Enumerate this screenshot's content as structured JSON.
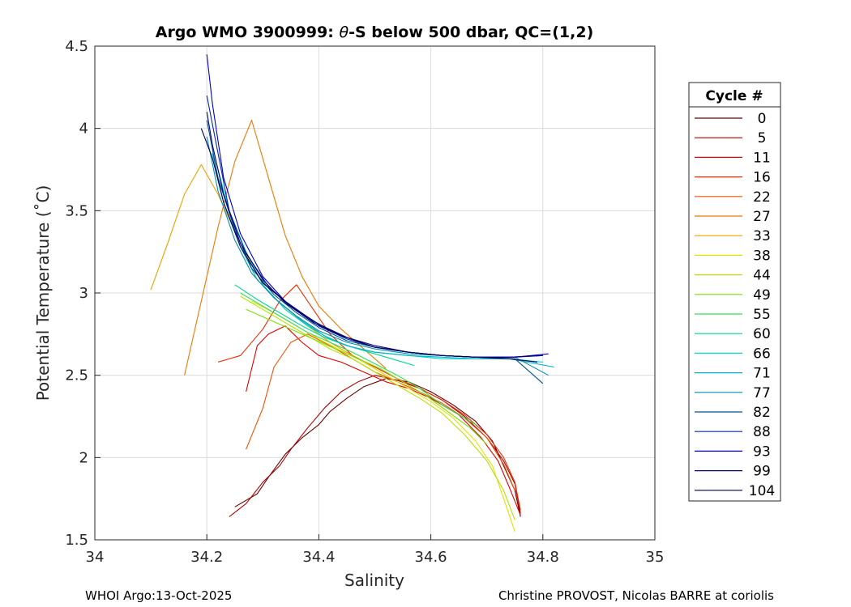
{
  "chart_data": {
    "type": "line",
    "title_prefix": "Argo WMO 3900999: ",
    "title_theta": "θ",
    "title_suffix": "-S below 500 dbar,  QC=(1,2)",
    "xlabel": "Salinity",
    "ylabel": "Potential Temperature (˚C)",
    "xlim": [
      34,
      35
    ],
    "ylim": [
      1.5,
      4.5
    ],
    "xticks": [
      34,
      34.2,
      34.4,
      34.6,
      34.8,
      35
    ],
    "xtick_labels": [
      "34",
      "34.2",
      "34.4",
      "34.6",
      "34.8",
      "35"
    ],
    "yticks": [
      1.5,
      2,
      2.5,
      3,
      3.5,
      4,
      4.5
    ],
    "ytick_labels": [
      "1.5",
      "2",
      "2.5",
      "3",
      "3.5",
      "4",
      "4.5"
    ],
    "grid": true,
    "legend": {
      "title": "Cycle #",
      "position": "right",
      "entries": [
        {
          "label": "0",
          "color": "#6a0000"
        },
        {
          "label": "5",
          "color": "#b00000"
        },
        {
          "label": "11",
          "color": "#e00000"
        },
        {
          "label": "16",
          "color": "#ee2a00"
        },
        {
          "label": "22",
          "color": "#f05000"
        },
        {
          "label": "27",
          "color": "#f07800"
        },
        {
          "label": "33",
          "color": "#f0a000"
        },
        {
          "label": "38",
          "color": "#e8e000"
        },
        {
          "label": "44",
          "color": "#b4e400"
        },
        {
          "label": "49",
          "color": "#7ae000"
        },
        {
          "label": "55",
          "color": "#30e050"
        },
        {
          "label": "60",
          "color": "#00d890"
        },
        {
          "label": "66",
          "color": "#00d8d0"
        },
        {
          "label": "71",
          "color": "#00b0c8"
        },
        {
          "label": "77",
          "color": "#0090b0"
        },
        {
          "label": "82",
          "color": "#005090"
        },
        {
          "label": "88",
          "color": "#0028a8"
        },
        {
          "label": "93",
          "color": "#0000c8"
        },
        {
          "label": "99",
          "color": "#00007a"
        },
        {
          "label": "104",
          "color": "#000050"
        }
      ]
    },
    "series": [
      {
        "name": "0",
        "color": "#6a0000",
        "x": [
          34.25,
          34.29,
          34.31,
          34.34,
          34.37,
          34.4,
          34.42,
          34.45,
          34.48,
          34.52,
          34.56,
          34.6,
          34.64,
          34.68,
          34.71,
          34.73,
          34.75,
          34.76
        ],
        "y": [
          1.7,
          1.78,
          1.88,
          2.02,
          2.12,
          2.2,
          2.28,
          2.36,
          2.43,
          2.48,
          2.46,
          2.4,
          2.32,
          2.22,
          2.1,
          1.95,
          1.8,
          1.64
        ]
      },
      {
        "name": "5",
        "color": "#b00000",
        "x": [
          34.24,
          34.27,
          34.3,
          34.33,
          34.35,
          34.38,
          34.41,
          34.44,
          34.47,
          34.5,
          34.54,
          34.58,
          34.62,
          34.66,
          34.7,
          34.73,
          34.75,
          34.76
        ],
        "y": [
          1.64,
          1.72,
          1.85,
          1.95,
          2.05,
          2.18,
          2.3,
          2.4,
          2.46,
          2.5,
          2.47,
          2.42,
          2.35,
          2.25,
          2.12,
          1.98,
          1.84,
          1.66
        ]
      },
      {
        "name": "11",
        "color": "#e00000",
        "x": [
          34.27,
          34.29,
          34.31,
          34.34,
          34.37,
          34.4,
          34.44,
          34.48,
          34.52,
          34.56,
          34.6,
          34.65,
          34.69,
          34.72,
          34.74,
          34.76
        ],
        "y": [
          2.4,
          2.68,
          2.75,
          2.8,
          2.7,
          2.62,
          2.58,
          2.52,
          2.46,
          2.42,
          2.36,
          2.26,
          2.12,
          1.98,
          1.82,
          1.65
        ]
      },
      {
        "name": "16",
        "color": "#ee2a00",
        "x": [
          34.22,
          34.26,
          34.3,
          34.33,
          34.36,
          34.39,
          34.42,
          34.46,
          34.5,
          34.54,
          34.58,
          34.62,
          34.66,
          34.7,
          34.73,
          34.75,
          34.76
        ],
        "y": [
          2.58,
          2.62,
          2.78,
          2.95,
          3.05,
          2.9,
          2.75,
          2.62,
          2.55,
          2.48,
          2.42,
          2.35,
          2.26,
          2.14,
          2.0,
          1.85,
          1.68
        ]
      },
      {
        "name": "22",
        "color": "#f05000",
        "x": [
          34.27,
          34.3,
          34.32,
          34.35,
          34.38,
          34.42,
          34.46,
          34.5,
          34.54,
          34.58,
          34.62,
          34.66,
          34.7,
          34.73,
          34.75
        ],
        "y": [
          2.05,
          2.3,
          2.55,
          2.7,
          2.75,
          2.68,
          2.6,
          2.52,
          2.46,
          2.4,
          2.33,
          2.24,
          2.12,
          1.96,
          1.8
        ]
      },
      {
        "name": "27",
        "color": "#f07800",
        "x": [
          34.16,
          34.19,
          34.22,
          34.25,
          34.28,
          34.31,
          34.34,
          34.37,
          34.4,
          34.44,
          34.48,
          34.52
        ],
        "y": [
          2.5,
          2.95,
          3.4,
          3.8,
          4.05,
          3.7,
          3.35,
          3.1,
          2.92,
          2.78,
          2.66,
          2.54
        ]
      },
      {
        "name": "33",
        "color": "#f0a000",
        "x": [
          34.1,
          34.13,
          34.16,
          34.19,
          34.22,
          34.26,
          34.3,
          34.34,
          34.38,
          34.42,
          34.46,
          34.5,
          34.54
        ],
        "y": [
          3.02,
          3.3,
          3.6,
          3.78,
          3.6,
          3.3,
          3.05,
          2.9,
          2.8,
          2.7,
          2.62,
          2.54,
          2.46
        ]
      },
      {
        "name": "38",
        "color": "#e8e000",
        "x": [
          34.28,
          34.32,
          34.36,
          34.4,
          34.44,
          34.48,
          34.52,
          34.56,
          34.6,
          34.64,
          34.68,
          34.71,
          34.73,
          34.75
        ],
        "y": [
          2.95,
          2.88,
          2.8,
          2.72,
          2.65,
          2.58,
          2.5,
          2.42,
          2.34,
          2.24,
          2.1,
          1.95,
          1.75,
          1.55
        ]
      },
      {
        "name": "44",
        "color": "#b4e400",
        "x": [
          34.26,
          34.3,
          34.34,
          34.38,
          34.42,
          34.46,
          34.5,
          34.54,
          34.58,
          34.62,
          34.66,
          34.7,
          34.73,
          34.75
        ],
        "y": [
          2.98,
          2.9,
          2.82,
          2.74,
          2.66,
          2.6,
          2.52,
          2.44,
          2.36,
          2.27,
          2.14,
          1.98,
          1.8,
          1.62
        ]
      },
      {
        "name": "49",
        "color": "#7ae000",
        "x": [
          34.27,
          34.31,
          34.35,
          34.39,
          34.43,
          34.47,
          34.51,
          34.55,
          34.59,
          34.63,
          34.67,
          34.7
        ],
        "y": [
          2.9,
          2.84,
          2.78,
          2.72,
          2.66,
          2.6,
          2.54,
          2.46,
          2.38,
          2.28,
          2.18,
          2.08
        ]
      },
      {
        "name": "55",
        "color": "#30e050",
        "x": [
          34.26,
          34.3,
          34.34,
          34.38,
          34.42,
          34.46,
          34.5,
          34.54,
          34.58,
          34.62,
          34.66,
          34.68
        ],
        "y": [
          3.0,
          2.92,
          2.84,
          2.76,
          2.7,
          2.64,
          2.57,
          2.5,
          2.42,
          2.32,
          2.24,
          2.2
        ]
      },
      {
        "name": "60",
        "color": "#00d890",
        "x": [
          34.25,
          34.29,
          34.33,
          34.37,
          34.41,
          34.45,
          34.49,
          34.53,
          34.57
        ],
        "y": [
          3.05,
          2.96,
          2.88,
          2.8,
          2.73,
          2.68,
          2.64,
          2.6,
          2.56
        ]
      },
      {
        "name": "66",
        "color": "#00d8d0",
        "x": [
          34.22,
          34.24,
          34.27,
          34.3,
          34.34,
          34.38,
          34.42,
          34.46,
          34.5,
          34.56,
          34.62,
          34.68,
          34.74,
          34.8
        ],
        "y": [
          3.75,
          3.5,
          3.25,
          3.05,
          2.9,
          2.8,
          2.72,
          2.67,
          2.64,
          2.62,
          2.6,
          2.6,
          2.6,
          2.58
        ]
      },
      {
        "name": "71",
        "color": "#00b0c8",
        "x": [
          34.21,
          34.23,
          34.26,
          34.29,
          34.33,
          34.37,
          34.41,
          34.45,
          34.5,
          34.56,
          34.62,
          34.68,
          34.74,
          34.82
        ],
        "y": [
          3.85,
          3.55,
          3.28,
          3.08,
          2.94,
          2.83,
          2.74,
          2.68,
          2.64,
          2.62,
          2.61,
          2.6,
          2.6,
          2.55
        ]
      },
      {
        "name": "77",
        "color": "#0090b0",
        "x": [
          34.2,
          34.22,
          34.25,
          34.28,
          34.32,
          34.36,
          34.4,
          34.45,
          34.5,
          34.56,
          34.62,
          34.68,
          34.75,
          34.81
        ],
        "y": [
          3.95,
          3.62,
          3.32,
          3.12,
          2.97,
          2.86,
          2.77,
          2.7,
          2.66,
          2.63,
          2.62,
          2.61,
          2.61,
          2.5
        ]
      },
      {
        "name": "82",
        "color": "#005090",
        "x": [
          34.2,
          34.22,
          34.25,
          34.28,
          34.32,
          34.36,
          34.4,
          34.45,
          34.5,
          34.56,
          34.62,
          34.68,
          34.75,
          34.8
        ],
        "y": [
          4.05,
          3.7,
          3.38,
          3.15,
          2.99,
          2.88,
          2.79,
          2.71,
          2.67,
          2.64,
          2.62,
          2.61,
          2.6,
          2.45
        ]
      },
      {
        "name": "88",
        "color": "#0028a8",
        "x": [
          34.2,
          34.22,
          34.24,
          34.27,
          34.31,
          34.35,
          34.4,
          34.45,
          34.5,
          34.56,
          34.62,
          34.68,
          34.75,
          34.8
        ],
        "y": [
          4.2,
          3.85,
          3.5,
          3.24,
          3.04,
          2.92,
          2.8,
          2.72,
          2.67,
          2.64,
          2.62,
          2.61,
          2.61,
          2.62
        ]
      },
      {
        "name": "93",
        "color": "#0000c8",
        "x": [
          34.2,
          34.21,
          34.23,
          34.26,
          34.3,
          34.34,
          34.39,
          34.44,
          34.5,
          34.56,
          34.62,
          34.68,
          34.75,
          34.81
        ],
        "y": [
          4.45,
          4.15,
          3.7,
          3.36,
          3.1,
          2.95,
          2.83,
          2.74,
          2.67,
          2.64,
          2.62,
          2.61,
          2.61,
          2.63
        ]
      },
      {
        "name": "99",
        "color": "#00007a",
        "x": [
          34.2,
          34.21,
          34.23,
          34.26,
          34.3,
          34.34,
          34.39,
          34.44,
          34.5,
          34.56,
          34.62,
          34.68,
          34.74,
          34.8
        ],
        "y": [
          4.1,
          3.9,
          3.6,
          3.3,
          3.08,
          2.94,
          2.82,
          2.74,
          2.68,
          2.64,
          2.62,
          2.61,
          2.61,
          2.62
        ]
      },
      {
        "name": "104",
        "color": "#000050",
        "x": [
          34.19,
          34.21,
          34.23,
          34.26,
          34.3,
          34.35,
          34.4,
          34.45,
          34.5,
          34.56,
          34.62,
          34.68,
          34.74,
          34.79
        ],
        "y": [
          4.0,
          3.82,
          3.55,
          3.28,
          3.06,
          2.92,
          2.81,
          2.73,
          2.67,
          2.64,
          2.62,
          2.61,
          2.6,
          2.58
        ]
      }
    ]
  },
  "footer": {
    "left": "WHOI Argo:13-Oct-2025",
    "right": "Christine PROVOST, Nicolas BARRE at coriolis"
  }
}
